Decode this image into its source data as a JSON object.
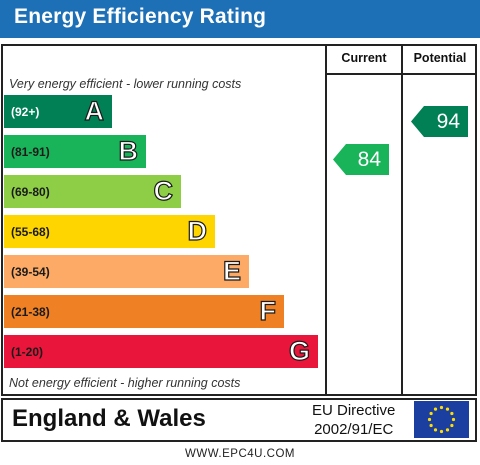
{
  "header": {
    "title": "Energy Efficiency Rating",
    "bar_color": "#1d6fb6"
  },
  "columns": {
    "current_label": "Current",
    "potential_label": "Potential"
  },
  "captions": {
    "top": "Very energy efficient - lower running costs",
    "bottom": "Not energy efficient - higher running costs"
  },
  "bands": [
    {
      "range": "(92+)",
      "letter": "A",
      "color": "#008054"
    },
    {
      "range": "(81-91)",
      "letter": "B",
      "color": "#19b459"
    },
    {
      "range": "(69-80)",
      "letter": "C",
      "color": "#8dce46"
    },
    {
      "range": "(55-68)",
      "letter": "D",
      "color": "#ffd500"
    },
    {
      "range": "(39-54)",
      "letter": "E",
      "color": "#fcaa65"
    },
    {
      "range": "(21-38)",
      "letter": "F",
      "color": "#ef8023"
    },
    {
      "range": "(1-20)",
      "letter": "G",
      "color": "#e9153b"
    }
  ],
  "ratings": {
    "current": {
      "value": "84",
      "band": "B",
      "color": "#19b459"
    },
    "potential": {
      "value": "94",
      "band": "A",
      "color": "#008054"
    }
  },
  "footer": {
    "region": "England & Wales",
    "directive_line1": "EU Directive",
    "directive_line2": "2002/91/EC",
    "flag_icon": "eu-flag-icon",
    "flag_color": "#1a3fa0",
    "star_color": "#ffdd00"
  },
  "website": "WWW.EPC4U.COM"
}
